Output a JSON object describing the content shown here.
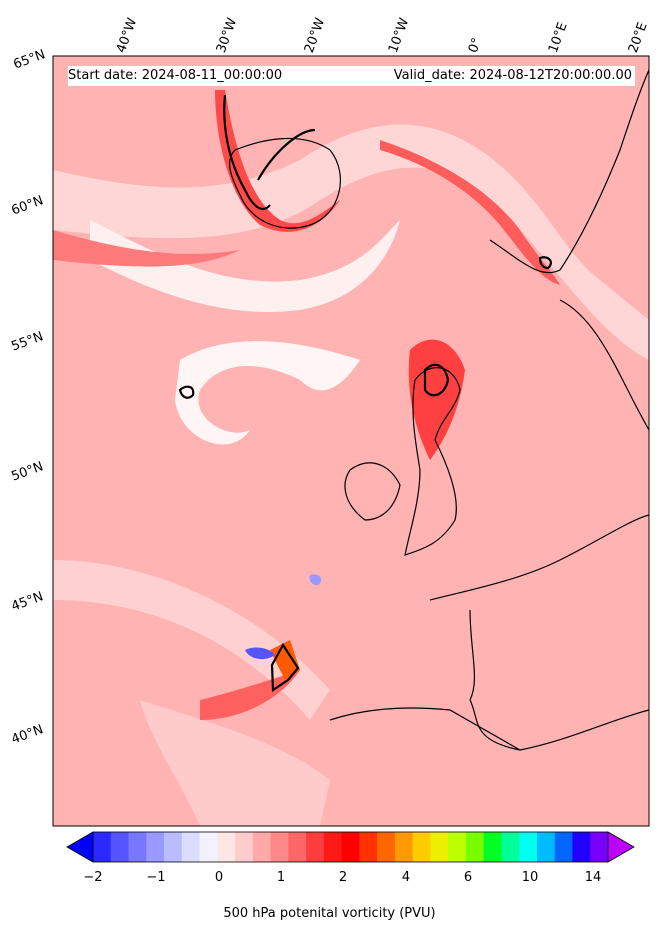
{
  "header": {
    "start_date": "Start date: 2024-08-11_00:00:00",
    "valid_date": "Valid_date: 2024-08-12T20:00:00.00"
  },
  "longitude_labels": [
    "40°W",
    "30°W",
    "20°W",
    "10°W",
    "0°",
    "10°E",
    "20°E"
  ],
  "latitude_labels": [
    "65°N",
    "60°N",
    "55°N",
    "50°N",
    "45°N",
    "40°N"
  ],
  "colorbar": {
    "ticks": [
      "−2",
      "−1",
      "0",
      "1",
      "2",
      "4",
      "6",
      "10",
      "14"
    ],
    "title": "500 hPa potenital vorticity (PVU)",
    "colors": [
      "#0000ff",
      "#2a2aff",
      "#5555ff",
      "#7777ff",
      "#9999ff",
      "#bbbbff",
      "#dcdcff",
      "#f2f2ff",
      "#ffe6e6",
      "#ffcccc",
      "#ffaaaa",
      "#ff8888",
      "#ff6666",
      "#ff3d3d",
      "#ff1a1a",
      "#ff0000",
      "#ff3300",
      "#ff6600",
      "#ff9900",
      "#ffcc00",
      "#eeee00",
      "#bbff00",
      "#77ff00",
      "#00ff22",
      "#00ff99",
      "#00ffee",
      "#00bbff",
      "#0066ff",
      "#2200ff",
      "#7700ff",
      "#bb00ff"
    ]
  },
  "colors": {
    "background_pv": "#ffb3b3",
    "high_pv": "#ff2a2a",
    "low_pv": "#fde8e8",
    "coast": "#000000"
  }
}
